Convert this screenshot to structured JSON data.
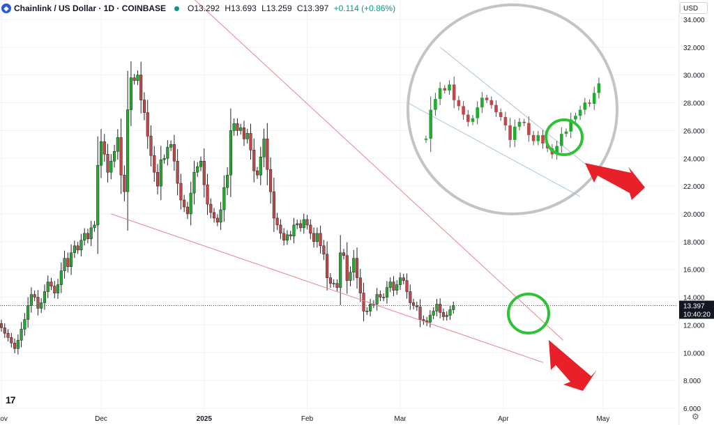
{
  "header": {
    "symbol": "Chainlink / US Dollar · 1D · COINBASE",
    "logo_letter": "◆",
    "open": "O13.292",
    "high": "H13.693",
    "low": "L13.259",
    "close": "C13.397",
    "change": "+0.114 (+0.86%)"
  },
  "currency": "USD",
  "price_tag": {
    "price": "13.397",
    "countdown": "10:40:20"
  },
  "tv_logo": "17",
  "colors": {
    "up": "#22ab2e",
    "down": "#c0474a",
    "trendline": "#e8848f",
    "circle": "#2ec236",
    "arrow": "#e8202a",
    "inset_line": "#a7c7de"
  },
  "chart_data": {
    "type": "candlestick",
    "title": "",
    "xlabel": "",
    "ylabel": "",
    "ylim": [
      5.5,
      34.8
    ],
    "y_ticks": [
      "6.000",
      "8.000",
      "10.000",
      "12.000",
      "14.000",
      "16.000",
      "18.000",
      "20.000",
      "22.000",
      "24.000",
      "26.000",
      "28.000",
      "30.000",
      "32.000",
      "34.000"
    ],
    "x_labels": [
      {
        "label": "Nov",
        "date": "2024-11-01"
      },
      {
        "label": "Dec",
        "date": "2024-12-01"
      },
      {
        "label": "2025",
        "date": "2025-01-01"
      },
      {
        "label": "Feb",
        "date": "2025-02-01"
      },
      {
        "label": "Mar",
        "date": "2025-03-01"
      },
      {
        "label": "Apr",
        "date": "2025-04-01"
      },
      {
        "label": "May",
        "date": "2025-05-01"
      }
    ],
    "start_date": "2024-11-01",
    "close": [
      11.8,
      11.4,
      11.1,
      10.7,
      10.3,
      10.9,
      11.7,
      12.4,
      13.4,
      14.2,
      14.0,
      13.2,
      13.6,
      14.4,
      15.1,
      14.8,
      14.3,
      14.9,
      15.9,
      16.8,
      16.2,
      17.2,
      17.7,
      17.4,
      18.1,
      18.6,
      18.2,
      19.0,
      19.2,
      23.5,
      25.2,
      24.3,
      23.0,
      23.8,
      24.5,
      25.5,
      22.8,
      21.6,
      27.5,
      29.8,
      29.6,
      30.0,
      28.2,
      27.3,
      25.6,
      24.2,
      23.0,
      22.0,
      23.9,
      24.0,
      24.8,
      25.0,
      23.8,
      22.2,
      21.0,
      20.5,
      20.0,
      21.5,
      23.0,
      23.4,
      23.8,
      22.1,
      20.7,
      20.1,
      19.7,
      19.4,
      20.3,
      21.9,
      22.8,
      26.0,
      26.5,
      26.0,
      26.2,
      25.4,
      25.8,
      24.6,
      23.1,
      22.8,
      24.1,
      25.4,
      23.2,
      21.6,
      19.7,
      19.2,
      18.6,
      18.1,
      18.5,
      18.4,
      19.2,
      19.3,
      19.0,
      19.6,
      19.2,
      18.6,
      18.0,
      18.6,
      17.7,
      17.1,
      15.4,
      15.0,
      15.0,
      14.7,
      17.2,
      17.0,
      15.2,
      15.8,
      16.8,
      15.4,
      14.3,
      13.0,
      13.0,
      13.5,
      13.5,
      14.2,
      14.0,
      14.0,
      14.7,
      15.1,
      14.5,
      14.9,
      15.4,
      15.2,
      14.4,
      13.6,
      13.4,
      13.3,
      12.4,
      12.3,
      12.2,
      12.7,
      13.0,
      13.5,
      12.9,
      12.6,
      12.7,
      13.1,
      13.4
    ],
    "highs_mark": "max 30.9",
    "lows_mark": "min 10.0"
  },
  "inset": {
    "ylim": [
      21.5,
      34.8
    ],
    "close": [
      25.6,
      28.0,
      28.9,
      29.8,
      29.6,
      30.1,
      28.8,
      28.3,
      27.6,
      27.0,
      27.3,
      28.2,
      29.0,
      28.8,
      28.4,
      27.8,
      27.4,
      26.7,
      25.5,
      26.6,
      27.0,
      26.9,
      25.9,
      25.4,
      25.9,
      25.2,
      24.8,
      24.3,
      25.0,
      26.0,
      26.2,
      27.2,
      27.5,
      28.0,
      28.6,
      28.5,
      29.4,
      30.2
    ],
    "open_first": 25.5
  }
}
